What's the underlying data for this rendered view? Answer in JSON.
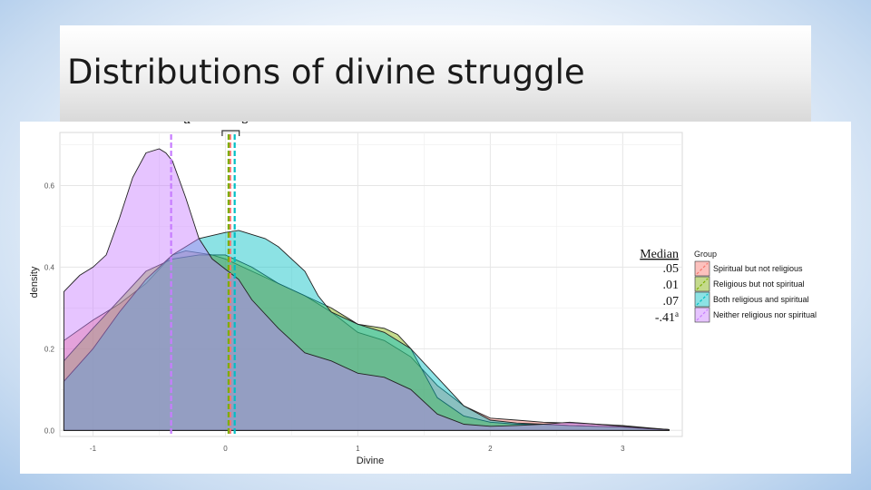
{
  "slide": {
    "title": "Distributions of divine struggle"
  },
  "chart_data": {
    "type": "area",
    "xlabel": "Divine",
    "ylabel": "density",
    "xlim": [
      -1.25,
      3.45
    ],
    "ylim": [
      -0.015,
      0.73
    ],
    "x_ticks": [
      -1,
      0,
      1,
      2,
      3
    ],
    "x_tick_labels": [
      "-1",
      "0",
      "1",
      "2",
      "3"
    ],
    "y_ticks": [
      0.0,
      0.2,
      0.4,
      0.6
    ],
    "y_tick_labels": [
      "0.0",
      "0.2",
      "0.4",
      "0.6"
    ],
    "grid": true,
    "legend": {
      "title": "Group",
      "placement": "right"
    },
    "median_header": "Median",
    "annotations": {
      "a": "a",
      "b": "b"
    },
    "series": [
      {
        "name": "Spiritual but not religious",
        "color": "#f8766d",
        "median": 0.05,
        "median_label": ".05",
        "x": [
          -1.22,
          -1.0,
          -0.8,
          -0.6,
          -0.4,
          -0.3,
          -0.2,
          -0.1,
          0.0,
          0.2,
          0.4,
          0.6,
          0.8,
          1.0,
          1.2,
          1.4,
          1.6,
          1.8,
          2.0,
          2.2,
          2.4,
          2.6,
          2.8,
          3.0,
          3.2,
          3.35
        ],
        "y": [
          0.22,
          0.27,
          0.31,
          0.36,
          0.43,
          0.44,
          0.435,
          0.43,
          0.42,
          0.39,
          0.36,
          0.33,
          0.29,
          0.24,
          0.22,
          0.18,
          0.11,
          0.06,
          0.03,
          0.025,
          0.02,
          0.018,
          0.015,
          0.012,
          0.006,
          0.002
        ]
      },
      {
        "name": "Religious but not spiritual",
        "color": "#7cae00",
        "median": 0.01,
        "median_label": ".01",
        "x": [
          -1.22,
          -1.0,
          -0.8,
          -0.6,
          -0.4,
          -0.2,
          0.0,
          0.2,
          0.4,
          0.6,
          0.8,
          1.0,
          1.1,
          1.2,
          1.3,
          1.4,
          1.5,
          1.6,
          1.8,
          2.0,
          2.2,
          2.4,
          2.6,
          2.8,
          3.0,
          3.2,
          3.35
        ],
        "y": [
          0.17,
          0.25,
          0.32,
          0.39,
          0.42,
          0.43,
          0.43,
          0.4,
          0.36,
          0.33,
          0.3,
          0.26,
          0.255,
          0.25,
          0.235,
          0.2,
          0.14,
          0.08,
          0.035,
          0.02,
          0.015,
          0.015,
          0.012,
          0.01,
          0.008,
          0.004,
          0.002
        ]
      },
      {
        "name": "Both religious and spiritual",
        "color": "#00bfc4",
        "median": 0.07,
        "median_label": ".07",
        "x": [
          -1.22,
          -1.0,
          -0.8,
          -0.6,
          -0.4,
          -0.2,
          0.0,
          0.1,
          0.2,
          0.3,
          0.4,
          0.6,
          0.7,
          0.8,
          1.0,
          1.2,
          1.4,
          1.6,
          1.8,
          2.0,
          2.2,
          2.4,
          2.6,
          2.8,
          3.0,
          3.2,
          3.35
        ],
        "y": [
          0.12,
          0.2,
          0.29,
          0.37,
          0.43,
          0.47,
          0.485,
          0.49,
          0.48,
          0.47,
          0.45,
          0.39,
          0.33,
          0.29,
          0.26,
          0.24,
          0.2,
          0.13,
          0.06,
          0.025,
          0.018,
          0.015,
          0.012,
          0.01,
          0.008,
          0.004,
          0.002
        ]
      },
      {
        "name": "Neither religious nor spiritual",
        "color": "#c77cff",
        "median": -0.41,
        "median_label": "-.41",
        "median_superscript": "a",
        "x": [
          -1.22,
          -1.1,
          -1.0,
          -0.9,
          -0.8,
          -0.7,
          -0.6,
          -0.5,
          -0.45,
          -0.4,
          -0.3,
          -0.2,
          -0.1,
          0.0,
          0.1,
          0.2,
          0.4,
          0.6,
          0.8,
          1.0,
          1.2,
          1.4,
          1.6,
          1.8,
          2.0,
          2.2,
          2.4,
          2.6,
          2.8,
          3.0,
          3.2,
          3.35
        ],
        "y": [
          0.34,
          0.38,
          0.4,
          0.43,
          0.52,
          0.62,
          0.68,
          0.69,
          0.68,
          0.66,
          0.57,
          0.47,
          0.42,
          0.395,
          0.37,
          0.32,
          0.25,
          0.19,
          0.17,
          0.14,
          0.13,
          0.1,
          0.04,
          0.015,
          0.01,
          0.012,
          0.015,
          0.02,
          0.015,
          0.01,
          0.005,
          0.002
        ]
      }
    ]
  }
}
